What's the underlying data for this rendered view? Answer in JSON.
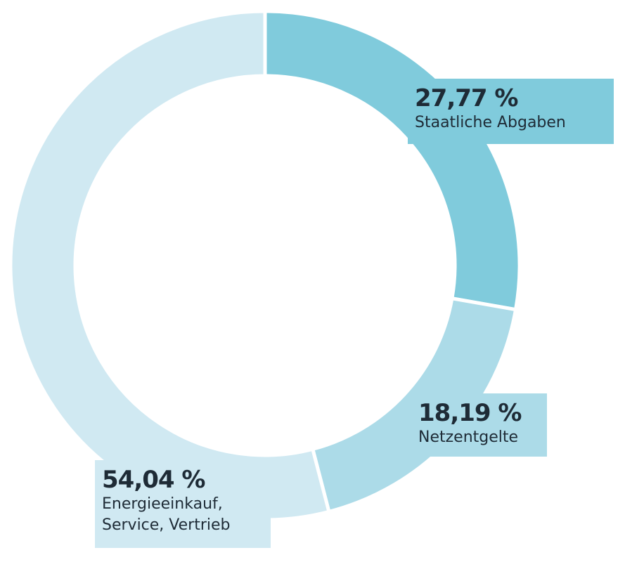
{
  "chart_data": {
    "type": "donut",
    "categories": [
      "Staatliche Abgaben",
      "Netzentgelte",
      "Energieeinkauf, Service, Vertrieb"
    ],
    "values": [
      27.77,
      18.19,
      54.04
    ],
    "value_labels": [
      "27,77 %",
      "18,19 %",
      "54,04 %"
    ],
    "colors": [
      "#80cbdc",
      "#acdbe8",
      "#d0e9f2"
    ]
  }
}
